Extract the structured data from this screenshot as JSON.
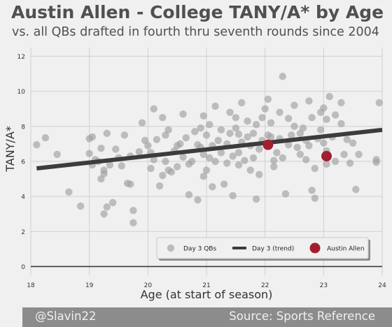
{
  "header": {
    "title": "Austin Allen - College TANY/A* by Age",
    "subtitle": "vs. all QBs drafted in fourth thru seventh rounds since 2004"
  },
  "footer": {
    "handle": "@Slavin22",
    "source": "Source: Sports Reference"
  },
  "colors": {
    "background": "#f0f0f0",
    "points": "#a0a0a0",
    "trend": "#3c3c3c",
    "highlight": "#a02030",
    "axis": "#3a3a3a",
    "grid": "#d0d0d0",
    "footer": "#8c8c8c"
  },
  "chart_data": {
    "type": "scatter",
    "xlabel": "Age (at start of season)",
    "ylabel": "TANY/A*",
    "xlim": [
      18,
      24
    ],
    "ylim": [
      -0.5,
      12.5
    ],
    "xticks": [
      18,
      19,
      20,
      21,
      22,
      23,
      24
    ],
    "yticks": [
      0,
      2,
      4,
      6,
      8,
      10,
      12
    ],
    "grid": true,
    "legend": {
      "placement": "lower-right",
      "entries": [
        "Day 3 QBs",
        "Day 3 (trend)",
        "Austin Allen"
      ]
    },
    "series": [
      {
        "name": "Day 3 QBs",
        "points": [
          [
            18.1,
            6.95
          ],
          [
            18.25,
            7.35
          ],
          [
            18.45,
            6.4
          ],
          [
            18.65,
            4.25
          ],
          [
            18.85,
            3.45
          ],
          [
            19.0,
            6.45
          ],
          [
            19.0,
            7.3
          ],
          [
            19.05,
            7.4
          ],
          [
            19.05,
            5.8
          ],
          [
            19.1,
            6.1
          ],
          [
            19.15,
            6.0
          ],
          [
            19.2,
            6.75
          ],
          [
            19.2,
            5.0
          ],
          [
            19.25,
            5.5
          ],
          [
            19.25,
            5.3
          ],
          [
            19.25,
            3.0
          ],
          [
            19.3,
            3.4
          ],
          [
            19.3,
            7.6
          ],
          [
            19.35,
            5.8
          ],
          [
            19.4,
            3.65
          ],
          [
            19.45,
            6.7
          ],
          [
            19.5,
            6.2
          ],
          [
            19.55,
            5.75
          ],
          [
            19.6,
            7.5
          ],
          [
            19.65,
            4.75
          ],
          [
            19.7,
            4.7
          ],
          [
            19.7,
            6.3
          ],
          [
            19.75,
            3.2
          ],
          [
            19.75,
            2.5
          ],
          [
            19.85,
            6.55
          ],
          [
            19.9,
            8.2
          ],
          [
            19.95,
            7.2
          ],
          [
            20.0,
            6.9
          ],
          [
            20.05,
            5.6
          ],
          [
            20.05,
            6.5
          ],
          [
            20.1,
            6.1
          ],
          [
            20.1,
            9.0
          ],
          [
            20.15,
            7.25
          ],
          [
            20.2,
            4.6
          ],
          [
            20.25,
            8.5
          ],
          [
            20.25,
            5.2
          ],
          [
            20.3,
            7.5
          ],
          [
            20.3,
            6.0
          ],
          [
            20.35,
            5.5
          ],
          [
            20.4,
            5.4
          ],
          [
            20.45,
            6.6
          ],
          [
            20.5,
            6.9
          ],
          [
            20.5,
            5.7
          ],
          [
            20.55,
            7.0
          ],
          [
            20.6,
            8.7
          ],
          [
            20.6,
            6.25
          ],
          [
            20.65,
            7.35
          ],
          [
            20.7,
            5.85
          ],
          [
            20.7,
            4.1
          ],
          [
            20.75,
            6.0
          ],
          [
            20.8,
            7.7
          ],
          [
            20.85,
            3.8
          ],
          [
            20.85,
            6.95
          ],
          [
            20.9,
            6.8
          ],
          [
            20.9,
            7.9
          ],
          [
            20.95,
            6.4
          ],
          [
            20.95,
            8.6
          ],
          [
            21.0,
            5.5
          ],
          [
            21.0,
            7.5
          ],
          [
            21.05,
            6.2
          ],
          [
            21.05,
            8.1
          ],
          [
            21.1,
            6.9
          ],
          [
            21.1,
            4.55
          ],
          [
            21.15,
            9.15
          ],
          [
            21.15,
            6.0
          ],
          [
            21.2,
            7.2
          ],
          [
            21.25,
            7.8
          ],
          [
            21.25,
            6.5
          ],
          [
            21.3,
            4.7
          ],
          [
            21.35,
            7.0
          ],
          [
            21.35,
            5.9
          ],
          [
            21.4,
            7.6
          ],
          [
            21.4,
            8.8
          ],
          [
            21.45,
            6.3
          ],
          [
            21.45,
            4.05
          ],
          [
            21.5,
            8.5
          ],
          [
            21.5,
            7.9
          ],
          [
            21.55,
            6.5
          ],
          [
            21.55,
            5.8
          ],
          [
            21.6,
            7.1
          ],
          [
            21.6,
            9.35
          ],
          [
            21.65,
            6.05
          ],
          [
            21.7,
            7.4
          ],
          [
            21.7,
            8.3
          ],
          [
            21.75,
            6.9
          ],
          [
            21.75,
            5.5
          ],
          [
            21.8,
            7.6
          ],
          [
            21.85,
            8.1
          ],
          [
            21.85,
            3.85
          ],
          [
            21.9,
            6.7
          ],
          [
            21.9,
            5.25
          ],
          [
            21.95,
            7.2
          ],
          [
            21.95,
            8.5
          ],
          [
            22.0,
            9.0
          ],
          [
            22.05,
            7.5
          ],
          [
            22.05,
            9.55
          ],
          [
            22.1,
            7.4
          ],
          [
            22.1,
            8.2
          ],
          [
            22.15,
            5.7
          ],
          [
            22.2,
            6.5
          ],
          [
            22.25,
            8.8
          ],
          [
            22.25,
            7.3
          ],
          [
            22.3,
            6.2
          ],
          [
            22.3,
            10.85
          ],
          [
            22.35,
            4.15
          ],
          [
            22.4,
            8.45
          ],
          [
            22.4,
            6.95
          ],
          [
            22.45,
            7.5
          ],
          [
            22.5,
            8.0
          ],
          [
            22.5,
            9.2
          ],
          [
            22.55,
            6.8
          ],
          [
            22.6,
            7.6
          ],
          [
            22.6,
            6.4
          ],
          [
            22.65,
            7.9
          ],
          [
            22.7,
            7.2
          ],
          [
            22.7,
            6.1
          ],
          [
            22.75,
            9.45
          ],
          [
            22.75,
            6.9
          ],
          [
            22.8,
            8.5
          ],
          [
            22.8,
            4.35
          ],
          [
            22.85,
            5.6
          ],
          [
            22.9,
            7.3
          ],
          [
            22.95,
            8.8
          ],
          [
            22.95,
            7.8
          ],
          [
            23.0,
            7.05
          ],
          [
            23.0,
            9.05
          ],
          [
            23.05,
            8.4
          ],
          [
            23.05,
            6.6
          ],
          [
            23.1,
            9.7
          ],
          [
            23.15,
            7.4
          ],
          [
            23.2,
            6.0
          ],
          [
            23.2,
            8.65
          ],
          [
            23.3,
            8.15
          ],
          [
            23.3,
            9.35
          ],
          [
            23.35,
            6.4
          ],
          [
            23.4,
            7.25
          ],
          [
            23.45,
            5.9
          ],
          [
            23.5,
            7.05
          ],
          [
            23.55,
            4.4
          ],
          [
            23.6,
            6.4
          ],
          [
            23.9,
            6.1
          ],
          [
            23.9,
            5.95
          ],
          [
            23.95,
            9.35
          ],
          [
            22.85,
            3.9
          ],
          [
            21.55,
            7.55
          ],
          [
            20.35,
            7.8
          ],
          [
            21.8,
            6.2
          ],
          [
            22.15,
            6.05
          ],
          [
            20.95,
            5.15
          ],
          [
            23.05,
            5.85
          ]
        ]
      },
      {
        "name": "Day 3 (trend)",
        "points": [
          [
            18.1,
            5.6
          ],
          [
            24.0,
            7.8
          ]
        ]
      },
      {
        "name": "Austin Allen",
        "points": [
          [
            22.05,
            6.95
          ],
          [
            23.05,
            6.3
          ]
        ]
      }
    ]
  }
}
